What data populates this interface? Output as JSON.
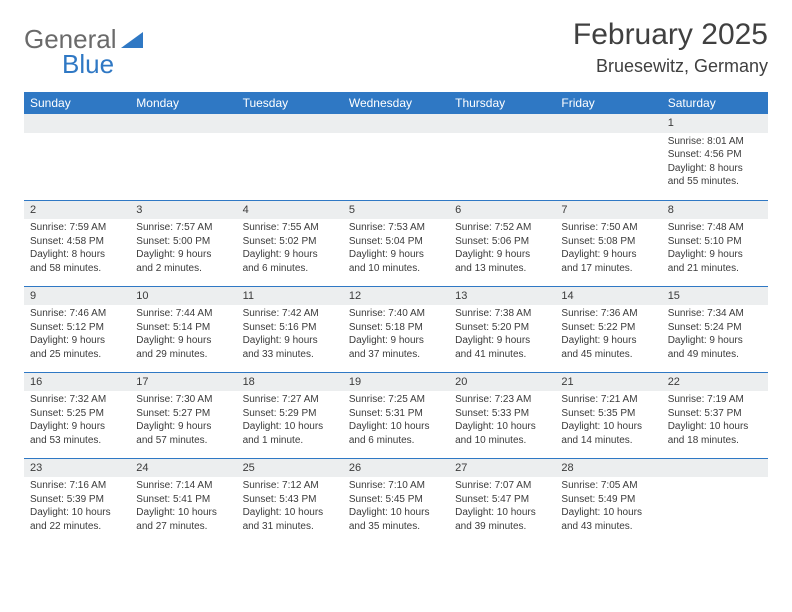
{
  "logo": {
    "line1": "General",
    "line2": "Blue",
    "brand_gray": "#6a6a6a",
    "brand_blue": "#2f78c4"
  },
  "title": "February 2025",
  "location": "Bruesewitz, Germany",
  "header_bg": "#2f78c4",
  "header_fg": "#ffffff",
  "daynum_bg": "#eceeef",
  "row_border": "#2f78c4",
  "text_color": "#3b3b3b",
  "days": [
    "Sunday",
    "Monday",
    "Tuesday",
    "Wednesday",
    "Thursday",
    "Friday",
    "Saturday"
  ],
  "weeks": [
    [
      null,
      null,
      null,
      null,
      null,
      null,
      {
        "n": "1",
        "sr": "8:01 AM",
        "ss": "4:56 PM",
        "dl": "8 hours and 55 minutes."
      }
    ],
    [
      {
        "n": "2",
        "sr": "7:59 AM",
        "ss": "4:58 PM",
        "dl": "8 hours and 58 minutes."
      },
      {
        "n": "3",
        "sr": "7:57 AM",
        "ss": "5:00 PM",
        "dl": "9 hours and 2 minutes."
      },
      {
        "n": "4",
        "sr": "7:55 AM",
        "ss": "5:02 PM",
        "dl": "9 hours and 6 minutes."
      },
      {
        "n": "5",
        "sr": "7:53 AM",
        "ss": "5:04 PM",
        "dl": "9 hours and 10 minutes."
      },
      {
        "n": "6",
        "sr": "7:52 AM",
        "ss": "5:06 PM",
        "dl": "9 hours and 13 minutes."
      },
      {
        "n": "7",
        "sr": "7:50 AM",
        "ss": "5:08 PM",
        "dl": "9 hours and 17 minutes."
      },
      {
        "n": "8",
        "sr": "7:48 AM",
        "ss": "5:10 PM",
        "dl": "9 hours and 21 minutes."
      }
    ],
    [
      {
        "n": "9",
        "sr": "7:46 AM",
        "ss": "5:12 PM",
        "dl": "9 hours and 25 minutes."
      },
      {
        "n": "10",
        "sr": "7:44 AM",
        "ss": "5:14 PM",
        "dl": "9 hours and 29 minutes."
      },
      {
        "n": "11",
        "sr": "7:42 AM",
        "ss": "5:16 PM",
        "dl": "9 hours and 33 minutes."
      },
      {
        "n": "12",
        "sr": "7:40 AM",
        "ss": "5:18 PM",
        "dl": "9 hours and 37 minutes."
      },
      {
        "n": "13",
        "sr": "7:38 AM",
        "ss": "5:20 PM",
        "dl": "9 hours and 41 minutes."
      },
      {
        "n": "14",
        "sr": "7:36 AM",
        "ss": "5:22 PM",
        "dl": "9 hours and 45 minutes."
      },
      {
        "n": "15",
        "sr": "7:34 AM",
        "ss": "5:24 PM",
        "dl": "9 hours and 49 minutes."
      }
    ],
    [
      {
        "n": "16",
        "sr": "7:32 AM",
        "ss": "5:25 PM",
        "dl": "9 hours and 53 minutes."
      },
      {
        "n": "17",
        "sr": "7:30 AM",
        "ss": "5:27 PM",
        "dl": "9 hours and 57 minutes."
      },
      {
        "n": "18",
        "sr": "7:27 AM",
        "ss": "5:29 PM",
        "dl": "10 hours and 1 minute."
      },
      {
        "n": "19",
        "sr": "7:25 AM",
        "ss": "5:31 PM",
        "dl": "10 hours and 6 minutes."
      },
      {
        "n": "20",
        "sr": "7:23 AM",
        "ss": "5:33 PM",
        "dl": "10 hours and 10 minutes."
      },
      {
        "n": "21",
        "sr": "7:21 AM",
        "ss": "5:35 PM",
        "dl": "10 hours and 14 minutes."
      },
      {
        "n": "22",
        "sr": "7:19 AM",
        "ss": "5:37 PM",
        "dl": "10 hours and 18 minutes."
      }
    ],
    [
      {
        "n": "23",
        "sr": "7:16 AM",
        "ss": "5:39 PM",
        "dl": "10 hours and 22 minutes."
      },
      {
        "n": "24",
        "sr": "7:14 AM",
        "ss": "5:41 PM",
        "dl": "10 hours and 27 minutes."
      },
      {
        "n": "25",
        "sr": "7:12 AM",
        "ss": "5:43 PM",
        "dl": "10 hours and 31 minutes."
      },
      {
        "n": "26",
        "sr": "7:10 AM",
        "ss": "5:45 PM",
        "dl": "10 hours and 35 minutes."
      },
      {
        "n": "27",
        "sr": "7:07 AM",
        "ss": "5:47 PM",
        "dl": "10 hours and 39 minutes."
      },
      {
        "n": "28",
        "sr": "7:05 AM",
        "ss": "5:49 PM",
        "dl": "10 hours and 43 minutes."
      },
      null
    ]
  ],
  "labels": {
    "sunrise": "Sunrise: ",
    "sunset": "Sunset: ",
    "daylight": "Daylight: "
  }
}
